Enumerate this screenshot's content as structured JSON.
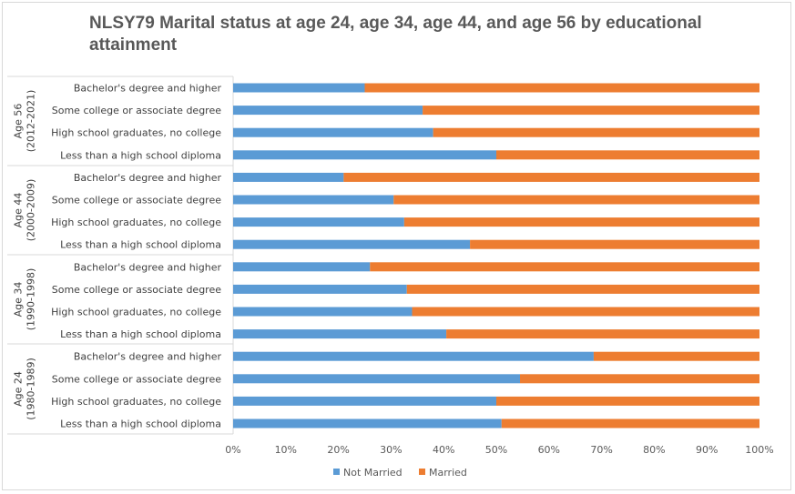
{
  "chart_data": {
    "type": "bar",
    "orientation": "horizontal",
    "stacked": true,
    "percent_stacked": true,
    "title": "NLSY79 Marital status at age 24, age 34, age 44, and age 56 by educational attainment",
    "xlim": [
      0,
      100
    ],
    "x_ticks": [
      "0%",
      "10%",
      "20%",
      "30%",
      "40%",
      "50%",
      "60%",
      "70%",
      "80%",
      "90%",
      "100%"
    ],
    "legend_position": "bottom",
    "grid": false,
    "colors": {
      "Not Married": "#5b9bd5",
      "Married": "#ed7d31"
    },
    "groups": [
      {
        "label": [
          "Age 56",
          "(2012-2021)"
        ],
        "categories": [
          "Bachelor's degree and higher",
          "Some college or associate degree",
          "High school graduates, no college",
          "Less than a high school diploma"
        ],
        "not_married": [
          25,
          36,
          38,
          50
        ]
      },
      {
        "label": [
          "Age 44",
          "(2000-2009)"
        ],
        "categories": [
          "Bachelor's degree and higher",
          "Some college or associate degree",
          "High school graduates, no college",
          "Less than a high school diploma"
        ],
        "not_married": [
          21,
          30.5,
          32.5,
          45
        ]
      },
      {
        "label": [
          "Age 34",
          "(1990-1998)"
        ],
        "categories": [
          "Bachelor's degree and higher",
          "Some college or associate degree",
          "High school graduates, no college",
          "Less than a high school diploma"
        ],
        "not_married": [
          26,
          33,
          34,
          40.5
        ]
      },
      {
        "label": [
          "Age 24",
          "(1980-1989)"
        ],
        "categories": [
          "Bachelor's degree and higher",
          "Some college or associate degree",
          "High school graduates, no college",
          "Less than a high school diploma"
        ],
        "not_married": [
          68.5,
          54.5,
          50,
          51
        ]
      }
    ],
    "series": [
      {
        "name": "Not Married"
      },
      {
        "name": "Married"
      }
    ]
  }
}
